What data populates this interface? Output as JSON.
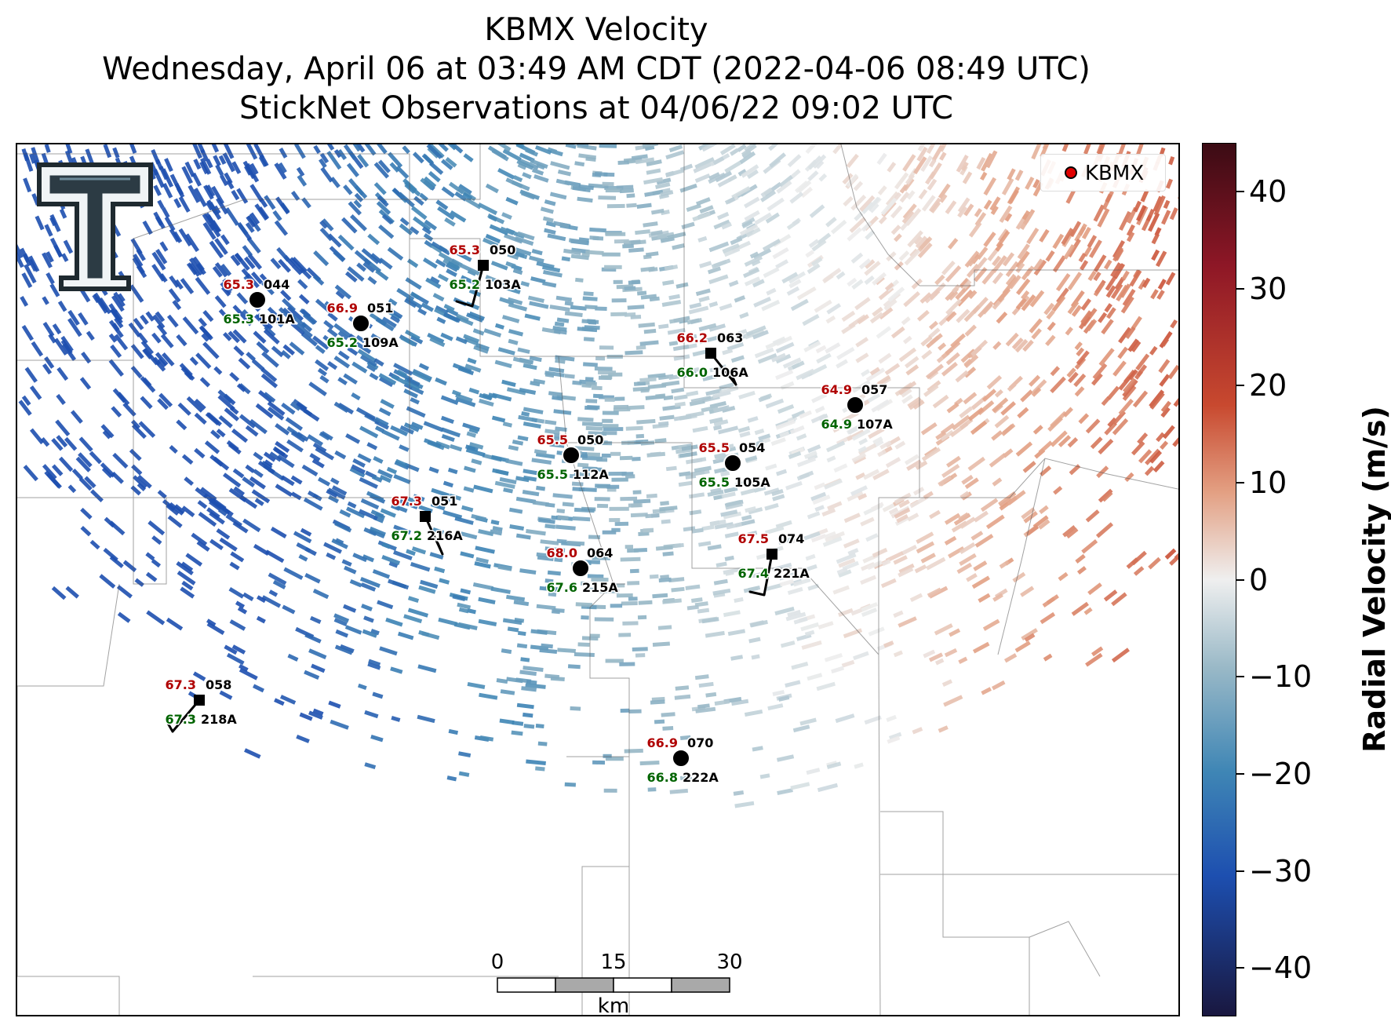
{
  "title": {
    "line1": "KBMX Velocity",
    "line2": "Wednesday, April 06 at 03:49 AM CDT (2022-04-06 08:49 UTC)",
    "line3": "StickNet Observations at 04/06/22 09:02 UTC"
  },
  "legend": {
    "label": "KBMX",
    "color": "#e00000"
  },
  "colorbar": {
    "label": "Radial Velocity (m/s)",
    "range": [
      -45,
      45
    ],
    "ticks": [
      "40",
      "30",
      "20",
      "10",
      "0",
      "−10",
      "−20",
      "−30",
      "−40"
    ]
  },
  "scalebar": {
    "labels": [
      "0",
      "15",
      "30"
    ],
    "unit": "km"
  },
  "logo": {
    "icon": "texas-tech-double-t-logo"
  },
  "stations": [
    {
      "id": "101A",
      "code": "044",
      "temp": "65.3",
      "dew": "65.3",
      "marker": "circle"
    },
    {
      "id": "109A",
      "code": "051",
      "temp": "66.9",
      "dew": "65.2",
      "marker": "circle"
    },
    {
      "id": "103A",
      "code": "050",
      "temp": "65.3",
      "dew": "65.2",
      "marker": "square"
    },
    {
      "id": "106A",
      "code": "063",
      "temp": "66.2",
      "dew": "66.0",
      "marker": "square"
    },
    {
      "id": "107A",
      "code": "057",
      "temp": "64.9",
      "dew": "64.9",
      "marker": "circle"
    },
    {
      "id": "112A",
      "code": "050",
      "temp": "65.5",
      "dew": "65.5",
      "marker": "circle"
    },
    {
      "id": "105A",
      "code": "054",
      "temp": "65.5",
      "dew": "65.5",
      "marker": "circle"
    },
    {
      "id": "216A",
      "code": "051",
      "temp": "67.3",
      "dew": "67.2",
      "marker": "square"
    },
    {
      "id": "215A",
      "code": "064",
      "temp": "68.0",
      "dew": "67.6",
      "marker": "circle"
    },
    {
      "id": "221A",
      "code": "074",
      "temp": "67.5",
      "dew": "67.4",
      "marker": "square"
    },
    {
      "id": "218A",
      "code": "058",
      "temp": "67.3",
      "dew": "67.3",
      "marker": "square"
    },
    {
      "id": "222A",
      "code": "070",
      "temp": "66.9",
      "dew": "66.8",
      "marker": "circle"
    }
  ]
}
